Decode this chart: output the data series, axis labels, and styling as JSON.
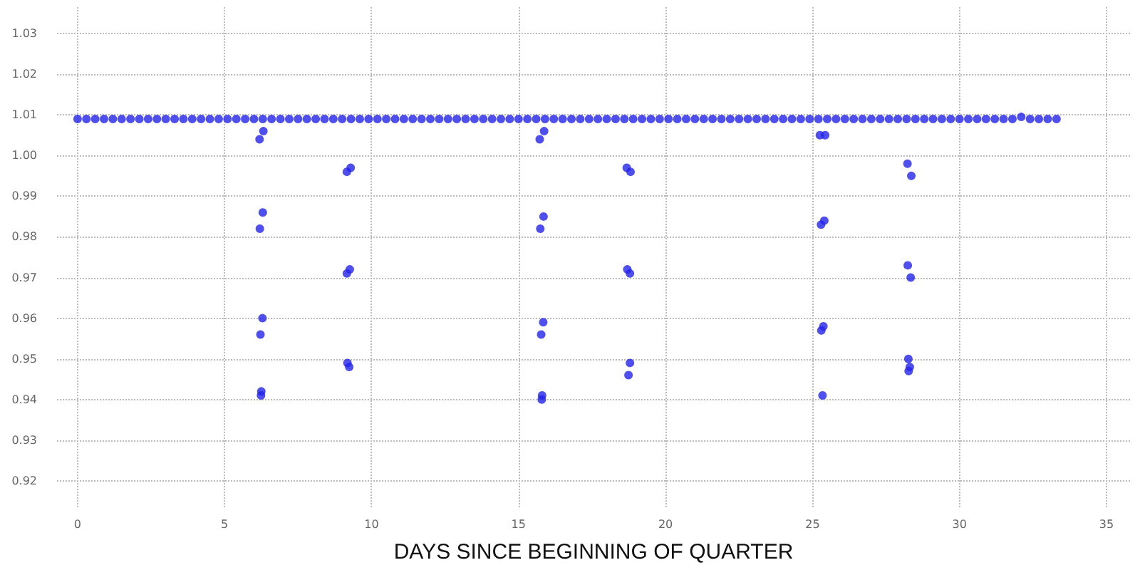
{
  "chart_data": {
    "type": "scatter",
    "xlabel": "DAYS SINCE BEGINNING OF QUARTER",
    "xlim": [
      -0.7,
      35.8
    ],
    "xticks": [
      0,
      5,
      10,
      15,
      20,
      25,
      30,
      35
    ],
    "ylim": [
      0.9135,
      1.0365
    ],
    "yticks": [
      {
        "value": 0.92,
        "label": "0.92"
      },
      {
        "value": 0.93,
        "label": "0.93"
      },
      {
        "value": 0.94,
        "label": "0.94"
      },
      {
        "value": 0.95,
        "label": "0.95"
      },
      {
        "value": 0.96,
        "label": "0.96"
      },
      {
        "value": 0.97,
        "label": "0.97"
      },
      {
        "value": 0.98,
        "label": "0.98"
      },
      {
        "value": 0.99,
        "label": "0.99"
      },
      {
        "value": 1,
        "label": "1.00"
      },
      {
        "value": 1.01,
        "label": "1.01"
      },
      {
        "value": 1.02,
        "label": "1.02"
      },
      {
        "value": 1.03,
        "label": "1.03"
      }
    ],
    "grid": true,
    "marker": "circle",
    "series": [
      {
        "color": "#2323e8",
        "x": [
          0,
          0.3,
          0.6,
          0.9,
          1.2,
          1.5,
          1.8,
          2.1,
          2.4,
          2.7,
          3,
          3.3,
          3.6,
          3.9,
          4.2,
          4.5,
          4.8,
          5.1,
          5.4,
          5.7,
          6,
          6.3,
          6.6,
          6.9,
          7.2,
          7.5,
          7.8,
          8.1,
          8.4,
          8.7,
          9,
          9.3,
          9.6,
          9.9,
          10.2,
          10.5,
          10.8,
          11.1,
          11.4,
          11.7,
          12,
          12.3,
          12.6,
          12.9,
          13.2,
          13.5,
          13.8,
          14.1,
          14.4,
          14.7,
          15,
          15.3,
          15.6,
          15.9,
          16.2,
          16.5,
          16.8,
          17.1,
          17.4,
          17.7,
          18,
          18.3,
          18.6,
          18.9,
          19.2,
          19.5,
          19.8,
          20.1,
          20.4,
          20.7,
          21,
          21.3,
          21.6,
          21.9,
          22.2,
          22.5,
          22.8,
          23.1,
          23.4,
          23.7,
          24,
          24.3,
          24.6,
          24.9,
          25.2,
          25.5,
          25.8,
          26.1,
          26.4,
          26.7,
          27,
          27.3,
          27.6,
          27.9,
          28.2,
          28.5,
          28.8,
          29.1,
          29.4,
          29.7,
          30,
          30.3,
          30.6,
          30.9,
          31.2,
          31.5,
          31.8,
          32.1,
          32.4,
          32.7,
          33,
          33.3
        ],
        "values": [
          1.009,
          1.009,
          1.009,
          1.009,
          1.009,
          1.009,
          1.009,
          1.009,
          1.009,
          1.009,
          1.009,
          1.009,
          1.009,
          1.009,
          1.009,
          1.009,
          1.009,
          1.009,
          1.009,
          1.009,
          1.009,
          1.009,
          1.009,
          1.009,
          1.009,
          1.009,
          1.009,
          1.009,
          1.009,
          1.009,
          1.009,
          1.009,
          1.009,
          1.009,
          1.009,
          1.009,
          1.009,
          1.009,
          1.009,
          1.009,
          1.009,
          1.009,
          1.009,
          1.009,
          1.009,
          1.009,
          1.009,
          1.009,
          1.009,
          1.009,
          1.009,
          1.009,
          1.009,
          1.009,
          1.009,
          1.009,
          1.009,
          1.009,
          1.009,
          1.009,
          1.009,
          1.009,
          1.009,
          1.009,
          1.009,
          1.009,
          1.009,
          1.009,
          1.009,
          1.009,
          1.009,
          1.009,
          1.009,
          1.009,
          1.009,
          1.009,
          1.009,
          1.009,
          1.009,
          1.009,
          1.009,
          1.009,
          1.009,
          1.009,
          1.009,
          1.009,
          1.009,
          1.009,
          1.009,
          1.009,
          1.009,
          1.009,
          1.009,
          1.009,
          1.009,
          1.009,
          1.009,
          1.009,
          1.009,
          1.009,
          1.009,
          1.009,
          1.009,
          1.009,
          1.009,
          1.009,
          1.009,
          1.0095,
          1.009,
          1.009,
          1.009,
          1.009
        ]
      },
      {
        "color": "#2323e8",
        "x": [
          6.19,
          6.32,
          6.3,
          6.2,
          6.29,
          6.22,
          6.25,
          6.24,
          9.16,
          9.29,
          9.16,
          9.26,
          9.24,
          9.18,
          15.72,
          15.87,
          15.85,
          15.74,
          15.84,
          15.77,
          15.8,
          15.79,
          18.68,
          18.81,
          18.7,
          18.79,
          18.79,
          18.74,
          25.25,
          25.43,
          25.4,
          25.29,
          25.37,
          25.3,
          25.34,
          28.23,
          28.36,
          28.24,
          28.34,
          28.26,
          28.31,
          28.27
        ],
        "values": [
          1.004,
          1.006,
          0.986,
          0.982,
          0.96,
          0.956,
          0.942,
          0.941,
          0.996,
          0.997,
          0.971,
          0.972,
          0.948,
          0.949,
          1.004,
          1.006,
          0.985,
          0.982,
          0.959,
          0.956,
          0.941,
          0.94,
          0.997,
          0.996,
          0.972,
          0.971,
          0.949,
          0.946,
          1.005,
          1.005,
          0.984,
          0.983,
          0.958,
          0.957,
          0.941,
          0.998,
          0.995,
          0.973,
          0.97,
          0.95,
          0.948,
          0.947
        ]
      }
    ]
  }
}
